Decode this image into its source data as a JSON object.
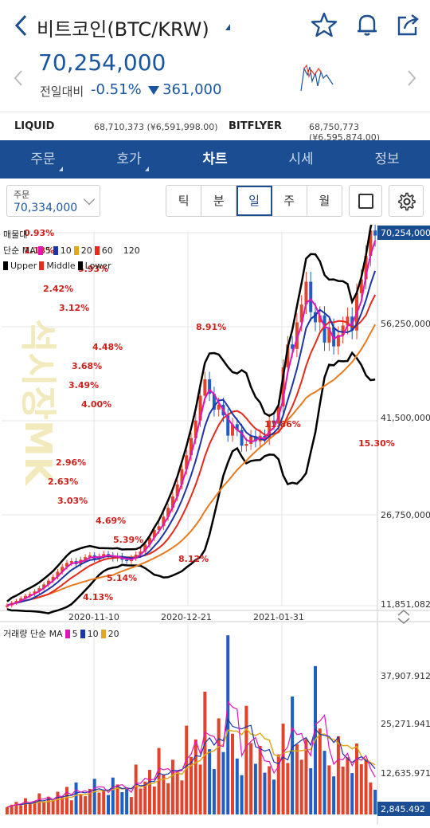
{
  "header": {
    "title": "비트코인(BTC/KRW)",
    "back_icon": "chevron-left-icon",
    "icons": [
      "star-icon",
      "bell-icon",
      "share-icon"
    ]
  },
  "quote": {
    "price": "70,254,000",
    "prev_label": "전일대비",
    "change_pct": "-0.51%",
    "change_amount": "361,000",
    "color_down": "#1a56a0"
  },
  "exchanges": [
    {
      "name": "LIQUID",
      "value": "68,710,373 (¥6,591,998.00)"
    },
    {
      "name": "BITFLYER",
      "value": "68,750,773 (¥6,595,874.00)"
    }
  ],
  "tabs": [
    {
      "label": "주문",
      "active": false
    },
    {
      "label": "호가",
      "active": false
    },
    {
      "label": "차트",
      "active": true
    },
    {
      "label": "시세",
      "active": false
    },
    {
      "label": "정보",
      "active": false
    }
  ],
  "controls": {
    "order_label": "주문",
    "order_value": "70,334,000",
    "periods": [
      "틱",
      "분",
      "일",
      "주",
      "월"
    ],
    "active_period": "일"
  },
  "chart_data": {
    "type": "candlestick",
    "price_axis": [
      "70,254,000",
      "56,250,000",
      "41,500,000",
      "26,750,000",
      "11,851,082"
    ],
    "current_price_tag": "70,254,000",
    "date_axis": [
      "2020-11-10",
      "2020-12-21",
      "2021-01-31"
    ],
    "legend_price": {
      "volume_profile": "매물대",
      "ma_label": "단순 MA",
      "ma_periods": [
        "5",
        "10",
        "20",
        "60",
        "120"
      ],
      "bollinger": [
        "Upper",
        "Middle",
        "Lower"
      ]
    },
    "volume_profile_pct": [
      "0.93%",
      "1.18%",
      "5.93%",
      "2.42%",
      "3.12%",
      "8.91%",
      "4.48%",
      "3.68%",
      "3.49%",
      "4.00%",
      "11.86%",
      "15.30%",
      "2.96%",
      "2.63%",
      "3.03%",
      "4.69%",
      "5.39%",
      "8.12%",
      "5.14%",
      "4.13%"
    ],
    "close_series": [
      11.9,
      12.3,
      12.6,
      13.0,
      13.4,
      13.7,
      14.1,
      14.6,
      15.2,
      15.8,
      16.4,
      17.2,
      18.0,
      18.6,
      18.9,
      18.4,
      19.1,
      19.5,
      19.8,
      19.2,
      19.6,
      20.0,
      19.8,
      19.3,
      19.7,
      19.1,
      18.9,
      19.4,
      19.9,
      20.4,
      21.5,
      22.6,
      23.8,
      24.4,
      25.9,
      27.3,
      29.1,
      31.0,
      33.4,
      35.6,
      38.3,
      41.1,
      45.0,
      47.6,
      45.3,
      42.8,
      43.6,
      41.9,
      38.7,
      40.5,
      39.6,
      37.1,
      37.4,
      38.6,
      37.8,
      38.7,
      38.2,
      41.1,
      40.6,
      43.3,
      49.5,
      53.1,
      52.4,
      56.6,
      59.4,
      63.0,
      58.2,
      56.6,
      57.7,
      53.4,
      55.8,
      52.8,
      54.6,
      56.1,
      57.5,
      55.3,
      61.2,
      63.4,
      67.1,
      71.1,
      70.3
    ],
    "volume_axis": [
      "37,907.912",
      "25,271.941",
      "12,635.971",
      "2,845.492"
    ],
    "legend_volume": {
      "label": "거래량 단순 MA",
      "ma_periods": [
        "5",
        "10",
        "20"
      ]
    },
    "volume_series": [
      1.8,
      2.4,
      3.1,
      2.2,
      4.0,
      2.6,
      3.3,
      5.2,
      3.0,
      4.4,
      3.6,
      5.6,
      4.2,
      6.8,
      3.5,
      7.9,
      5.1,
      4.5,
      6.3,
      8.8,
      5.4,
      6.0,
      4.8,
      9.1,
      7.4,
      5.5,
      6.6,
      4.3,
      12.3,
      6.4,
      8.1,
      11.0,
      6.9,
      16.4,
      9.8,
      7.7,
      13.5,
      10.6,
      8.4,
      21.9,
      14.2,
      18.5,
      12.3,
      30.3,
      16.1,
      11.2,
      23.7,
      15.4,
      44.2,
      19.9,
      13.8,
      9.7,
      26.8,
      17.6,
      12.5,
      16.9,
      10.3,
      11.9,
      8.6,
      14.8,
      22.4,
      12.7,
      29.1,
      17.3,
      13.5,
      18.6,
      11.4,
      36.6,
      21.2,
      15.7,
      12.1,
      9.4,
      19.3,
      11.8,
      14.1,
      10.2,
      17.5,
      12.4,
      13.6,
      7.9,
      6.1
    ],
    "colors": {
      "up": "#e2432a",
      "down": "#1f5fc2",
      "ma5": "#e016b5",
      "ma10": "#1c35a8",
      "ma20": "#e62a1c",
      "ma60": "#e87a1e",
      "ma120": "#111111",
      "bollinger": "#000000",
      "vol_ma20": "#e0a81e"
    }
  }
}
